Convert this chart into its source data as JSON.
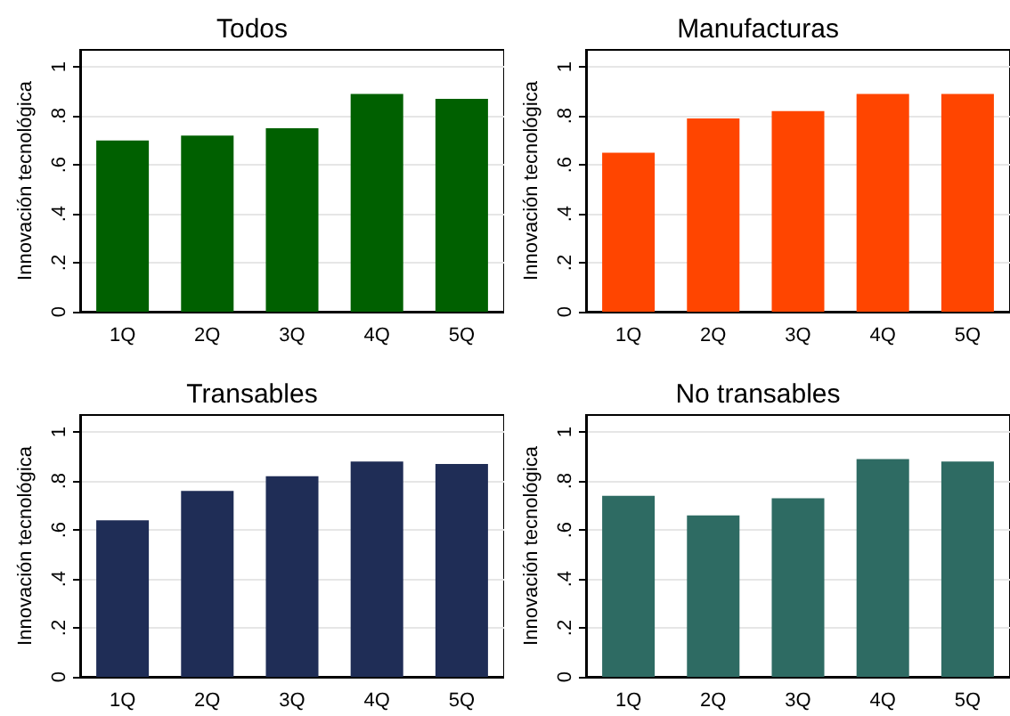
{
  "chart_data": [
    {
      "type": "bar",
      "title": "Todos",
      "ylabel": "Innovación tecnológica",
      "categories": [
        "1Q",
        "2Q",
        "3Q",
        "4Q",
        "5Q"
      ],
      "values": [
        0.7,
        0.72,
        0.75,
        0.89,
        0.87
      ],
      "color": "#006000",
      "ylim": [
        0,
        1.07
      ],
      "yticks": [
        {
          "value": 0,
          "label": "0"
        },
        {
          "value": 0.2,
          "label": ".2"
        },
        {
          "value": 0.4,
          "label": ".4"
        },
        {
          "value": 0.6,
          "label": ".6"
        },
        {
          "value": 0.8,
          "label": ".8"
        },
        {
          "value": 1,
          "label": "1"
        }
      ],
      "grid": "y"
    },
    {
      "type": "bar",
      "title": "Manufacturas",
      "ylabel": "Innovación tecnológica",
      "categories": [
        "1Q",
        "2Q",
        "3Q",
        "4Q",
        "5Q"
      ],
      "values": [
        0.65,
        0.79,
        0.82,
        0.89,
        0.89
      ],
      "color": "#ff4500",
      "ylim": [
        0,
        1.07
      ],
      "yticks": [
        {
          "value": 0,
          "label": "0"
        },
        {
          "value": 0.2,
          "label": ".2"
        },
        {
          "value": 0.4,
          "label": ".4"
        },
        {
          "value": 0.6,
          "label": ".6"
        },
        {
          "value": 0.8,
          "label": ".8"
        },
        {
          "value": 1,
          "label": "1"
        }
      ],
      "grid": "y"
    },
    {
      "type": "bar",
      "title": "Transables",
      "ylabel": "Innovación tecnológica",
      "categories": [
        "1Q",
        "2Q",
        "3Q",
        "4Q",
        "5Q"
      ],
      "values": [
        0.64,
        0.76,
        0.82,
        0.88,
        0.87
      ],
      "color": "#1f2d56",
      "ylim": [
        0,
        1.07
      ],
      "yticks": [
        {
          "value": 0,
          "label": "0"
        },
        {
          "value": 0.2,
          "label": ".2"
        },
        {
          "value": 0.4,
          "label": ".4"
        },
        {
          "value": 0.6,
          "label": ".6"
        },
        {
          "value": 0.8,
          "label": ".8"
        },
        {
          "value": 1,
          "label": "1"
        }
      ],
      "grid": "y"
    },
    {
      "type": "bar",
      "title": "No transables",
      "ylabel": "Innovación tecnológica",
      "categories": [
        "1Q",
        "2Q",
        "3Q",
        "4Q",
        "5Q"
      ],
      "values": [
        0.74,
        0.66,
        0.73,
        0.89,
        0.88
      ],
      "color": "#2e6b63",
      "ylim": [
        0,
        1.07
      ],
      "yticks": [
        {
          "value": 0,
          "label": "0"
        },
        {
          "value": 0.2,
          "label": ".2"
        },
        {
          "value": 0.4,
          "label": ".4"
        },
        {
          "value": 0.6,
          "label": ".6"
        },
        {
          "value": 0.8,
          "label": ".8"
        },
        {
          "value": 1,
          "label": "1"
        }
      ],
      "grid": "y"
    }
  ]
}
